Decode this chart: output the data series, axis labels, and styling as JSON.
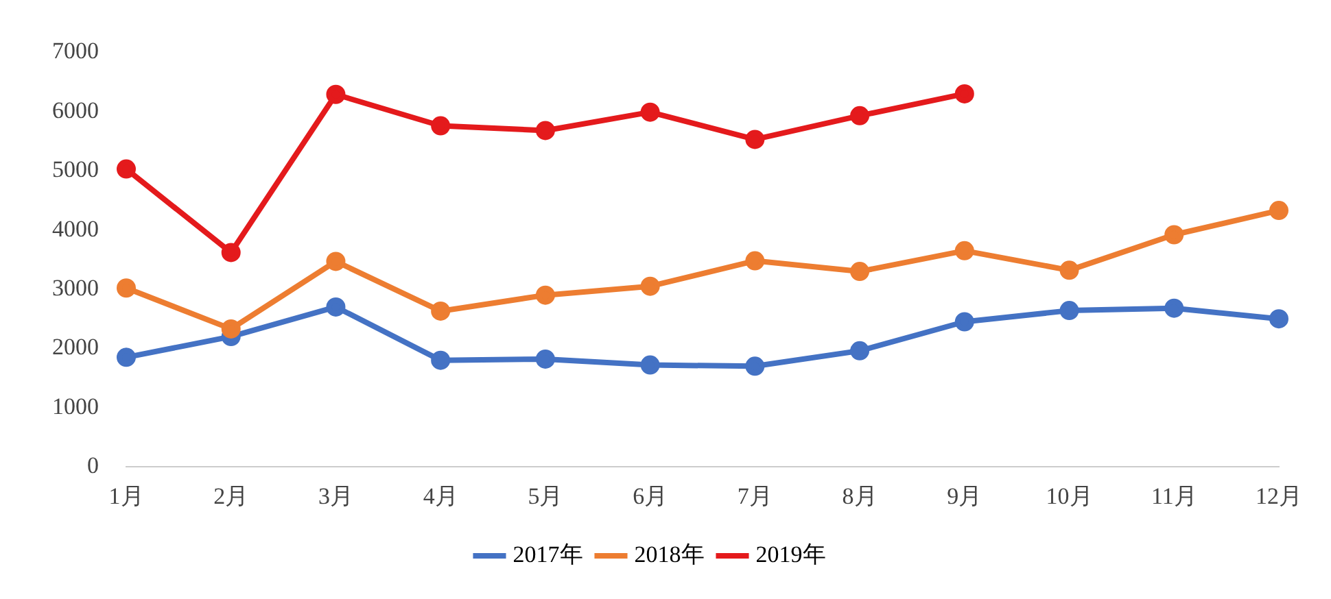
{
  "chart_data": {
    "type": "line",
    "categories": [
      "1月",
      "2月",
      "3月",
      "4月",
      "5月",
      "6月",
      "7月",
      "8月",
      "9月",
      "10月",
      "11月",
      "12月"
    ],
    "series": [
      {
        "name": "2017年",
        "color": "#4472c4",
        "values": [
          1850,
          2200,
          2700,
          1800,
          1820,
          1720,
          1700,
          1960,
          2450,
          2640,
          2680,
          2500
        ]
      },
      {
        "name": "2018年",
        "color": "#ed7d31",
        "values": [
          3020,
          2330,
          3470,
          2630,
          2900,
          3050,
          3480,
          3300,
          3650,
          3320,
          3920,
          4330
        ]
      },
      {
        "name": "2019年",
        "color": "#e41a1c",
        "values": [
          5030,
          3620,
          6290,
          5760,
          5680,
          5990,
          5530,
          5930,
          6300,
          null,
          null,
          null
        ]
      }
    ],
    "ylim": [
      0,
      7000
    ],
    "yticks": [
      0,
      1000,
      2000,
      3000,
      4000,
      5000,
      6000,
      7000
    ],
    "grid": false,
    "legend": "bottom",
    "marker": "circle",
    "line_style": "solid"
  }
}
